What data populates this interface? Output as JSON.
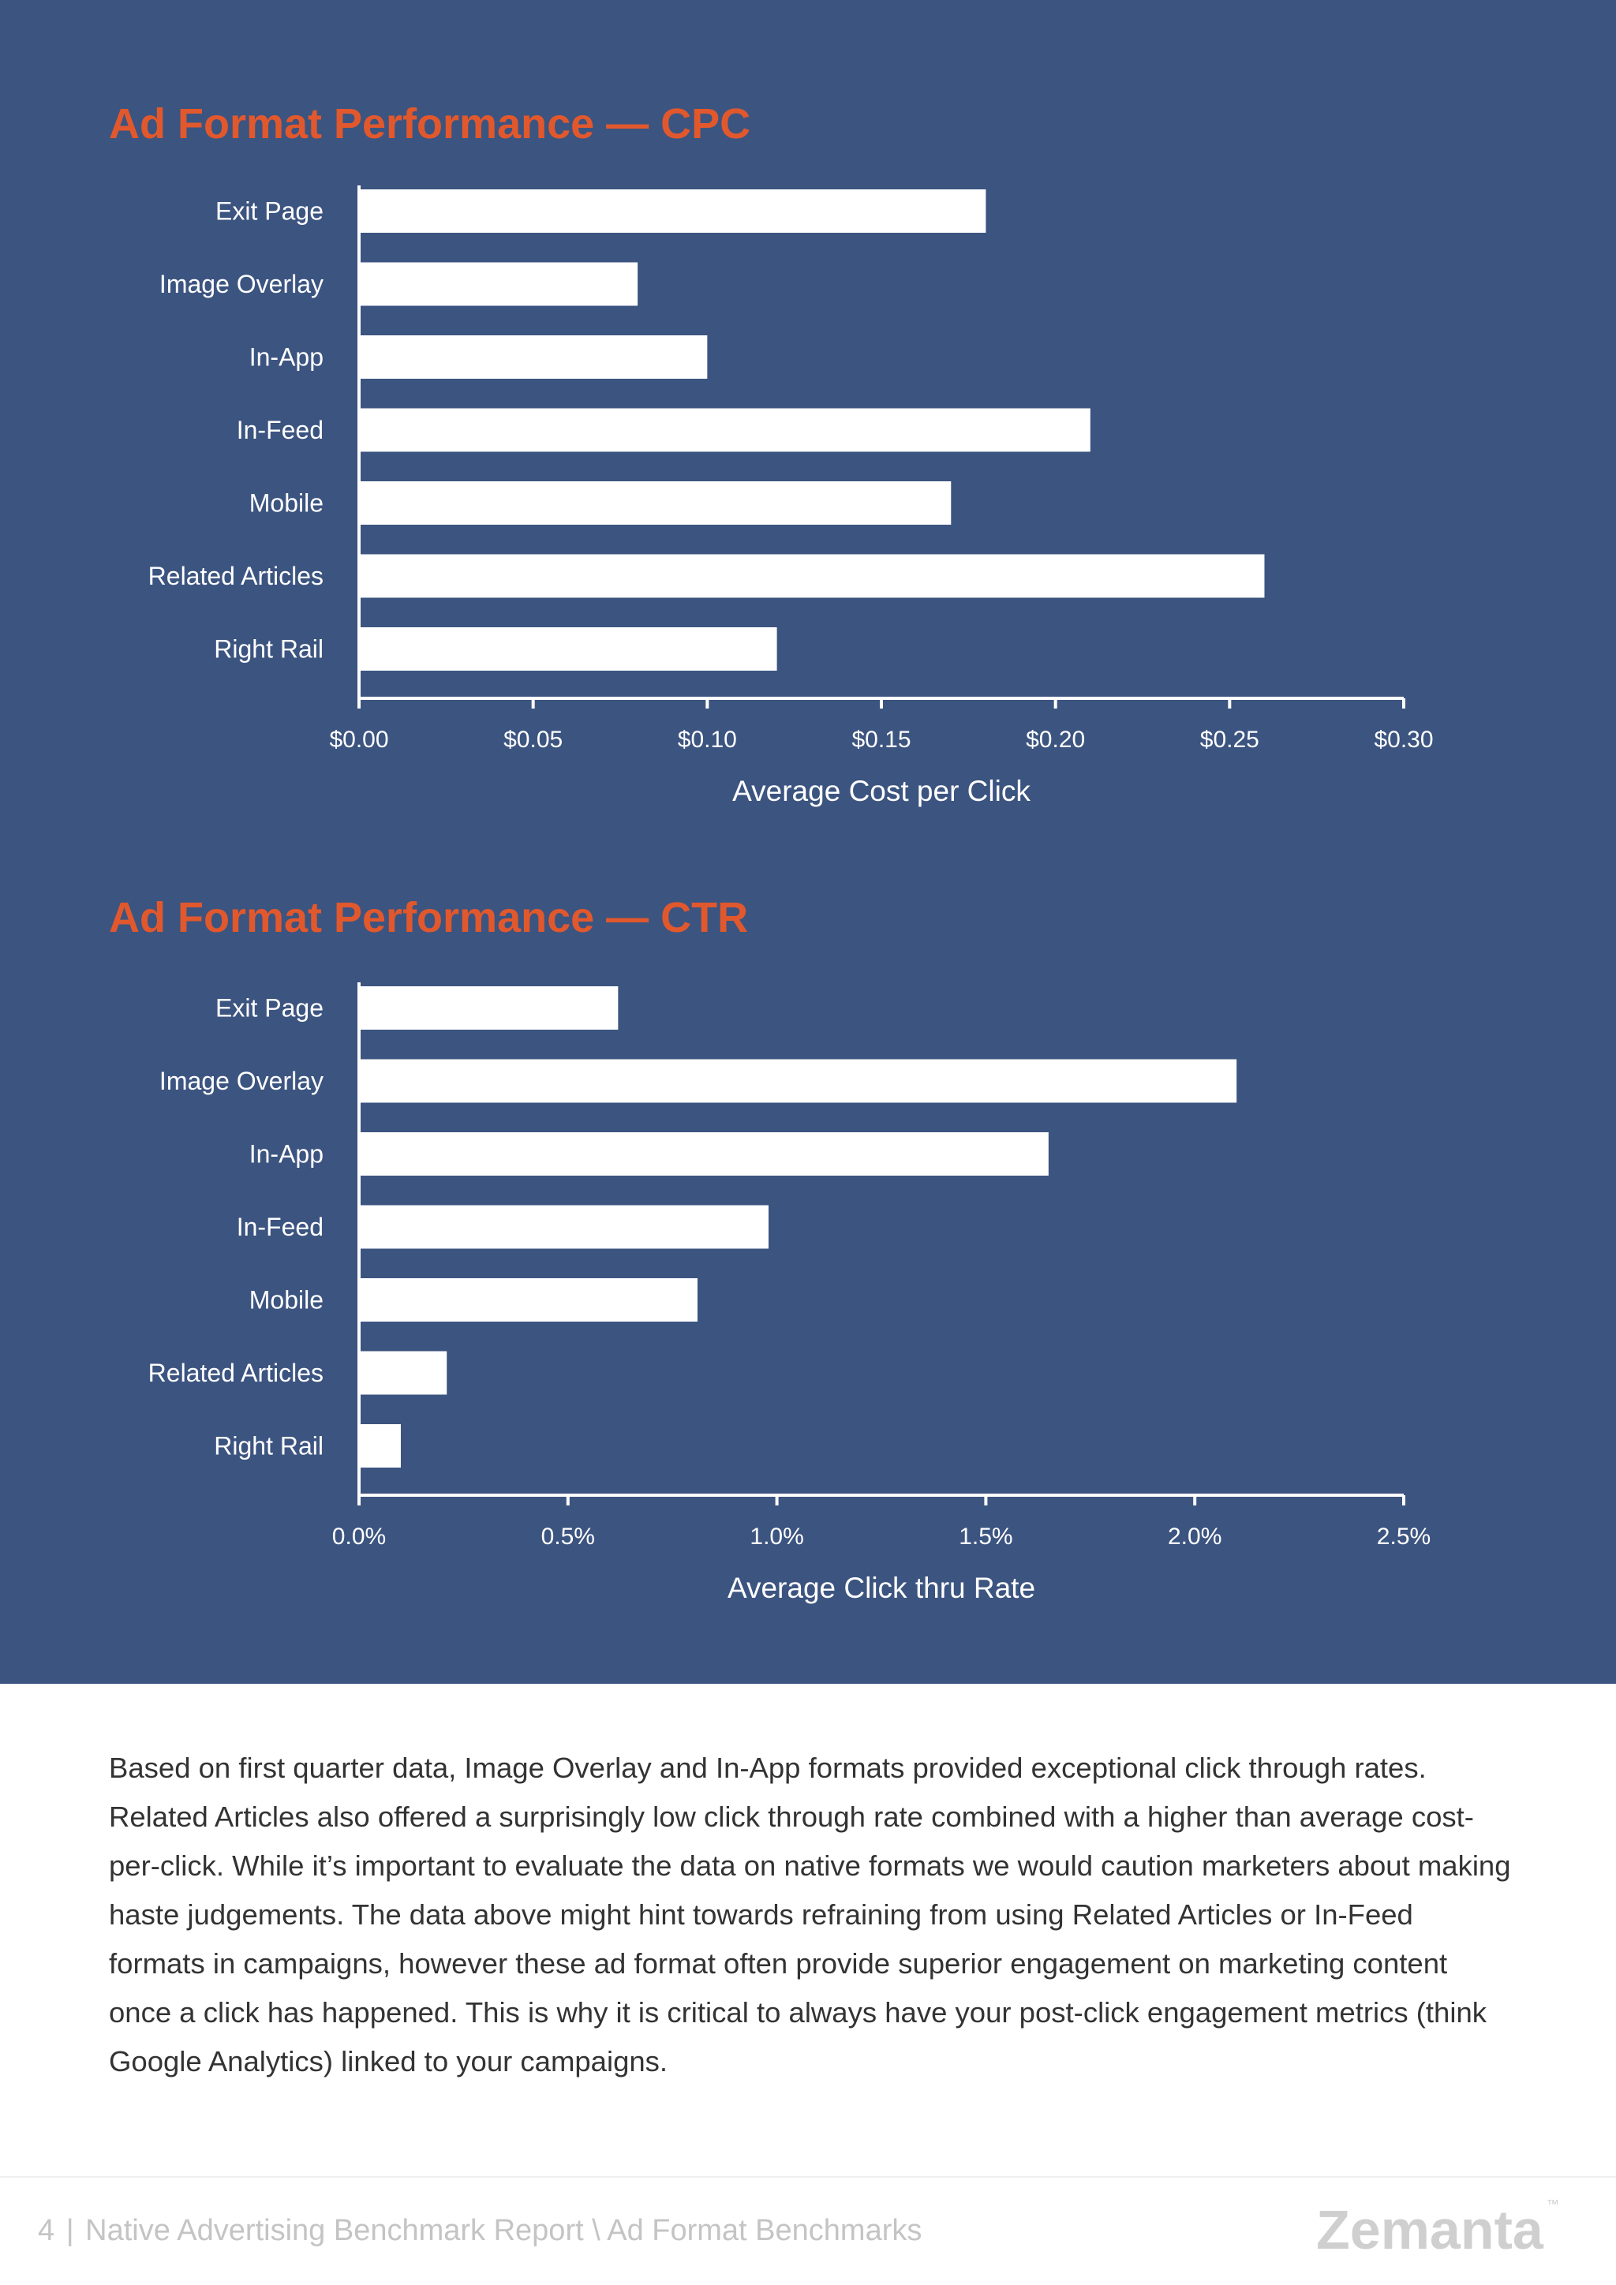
{
  "chart_data": [
    {
      "type": "bar",
      "orientation": "horizontal",
      "title": "Ad Format Performance — CPC",
      "categories": [
        "Exit Page",
        "Image Overlay",
        "In-App",
        "In-Feed",
        "Mobile",
        "Related Articles",
        "Right Rail"
      ],
      "values": [
        0.18,
        0.08,
        0.1,
        0.21,
        0.17,
        0.26,
        0.12
      ],
      "xlabel": "Average Cost per Click",
      "ylabel": "",
      "xlim": [
        0,
        0.3
      ],
      "ticks": [
        0,
        0.05,
        0.1,
        0.15,
        0.2,
        0.25,
        0.3
      ],
      "tick_labels": [
        "$0.00",
        "$0.05",
        "$0.10",
        "$0.15",
        "$0.20",
        "$0.25",
        "$0.30"
      ],
      "grid": false,
      "bar_color": "#ffffff"
    },
    {
      "type": "bar",
      "orientation": "horizontal",
      "title": "Ad Format Performance — CTR",
      "categories": [
        "Exit Page",
        "Image Overlay",
        "In-App",
        "In-Feed",
        "Mobile",
        "Related Articles",
        "Right Rail"
      ],
      "values": [
        0.62,
        2.1,
        1.65,
        0.98,
        0.81,
        0.21,
        0.1
      ],
      "xlabel": "Average Click thru Rate",
      "ylabel": "",
      "xlim": [
        0,
        2.5
      ],
      "ticks": [
        0,
        0.5,
        1.0,
        1.5,
        2.0,
        2.5
      ],
      "tick_labels": [
        "0.0%",
        "0.5%",
        "1.0%",
        "1.5%",
        "2.0%",
        "2.5%"
      ],
      "grid": false,
      "bar_color": "#ffffff"
    }
  ],
  "body_text": "Based on first quarter data, Image Overlay and In-App formats provided exceptional click through rates. Related Articles also offered a surprisingly low click through rate combined with a higher than average cost-per-click. While it’s important to evaluate the data on native formats we would caution marketers about making haste judgements. The data above might hint towards refraining from using Related Articles or In-Feed formats in campaigns, however these ad format often provide superior engagement on marketing content once a click has happened. This is why it is critical to always have your post-click engagement metrics (think Google Analytics) linked to your campaigns.",
  "footer": {
    "page_number": "4",
    "separator": "|",
    "text": "Native Advertising Benchmark Report \\ Ad Format Benchmarks"
  },
  "logo": {
    "text": "Zemanta",
    "mark": "™"
  },
  "colors": {
    "panel_background": "#3c5480",
    "title_accent": "#e2582d",
    "bars": "#ffffff",
    "body_text": "#333333",
    "footer_text": "#c4c4c4"
  }
}
